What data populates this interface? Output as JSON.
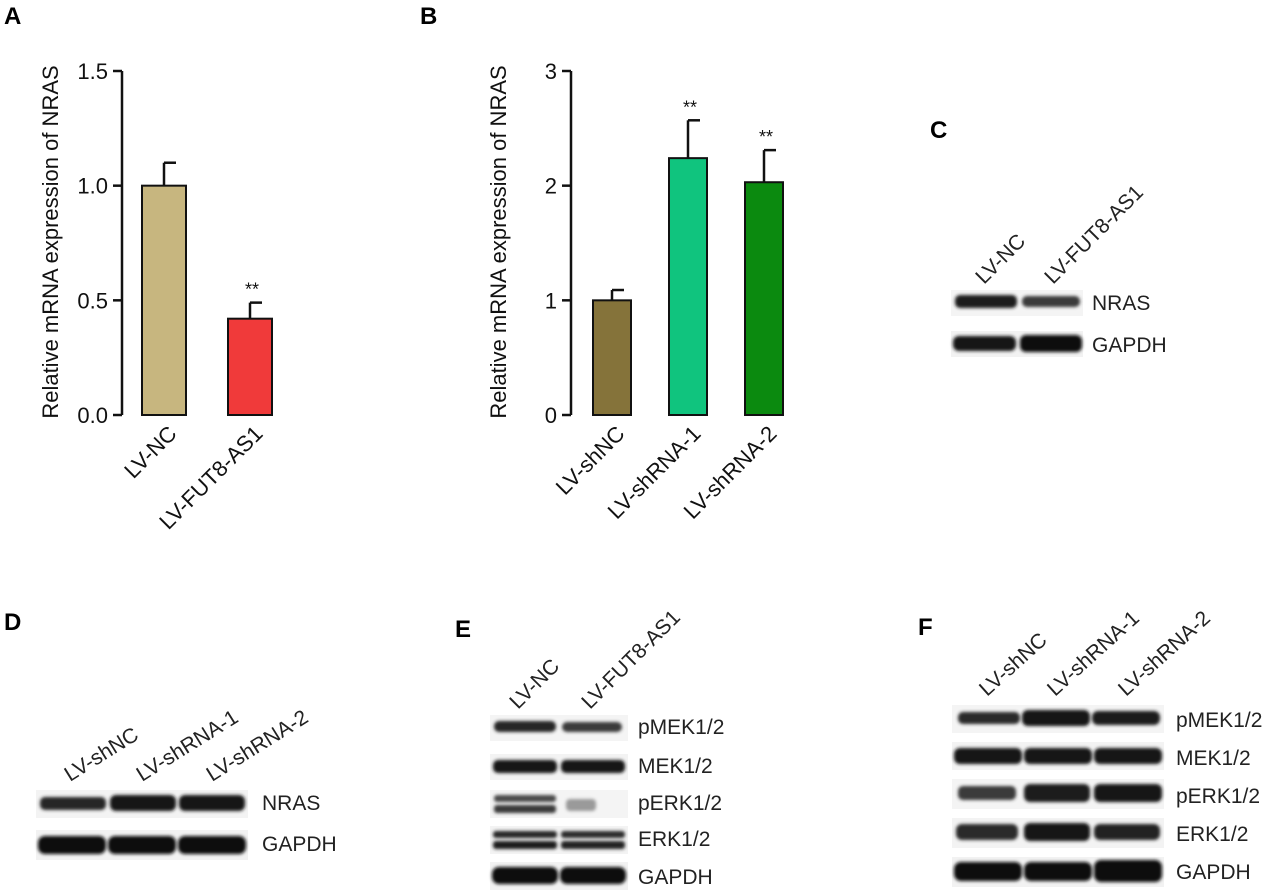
{
  "panels": {
    "A": "A",
    "B": "B",
    "C": "C",
    "D": "D",
    "E": "E",
    "F": "F"
  },
  "chart_data": [
    {
      "id": "A",
      "type": "bar",
      "ylabel": "Relative mRNA expression of NRAS",
      "ylim": [
        0,
        1.5
      ],
      "yticks": [
        "0.0",
        "0.5",
        "1.0",
        "1.5"
      ],
      "ytick_values": [
        0,
        0.5,
        1.0,
        1.5
      ],
      "categories": [
        "LV-NC",
        "LV-FUT8-AS1"
      ],
      "values": [
        1.0,
        0.42
      ],
      "errors": [
        0.1,
        0.07
      ],
      "colors": [
        "#c7b67f",
        "#f03a3a"
      ],
      "annotations": [
        "",
        "**"
      ]
    },
    {
      "id": "B",
      "type": "bar",
      "ylabel": "Relative mRNA expression of NRAS",
      "ylim": [
        0,
        3
      ],
      "yticks": [
        "0",
        "1",
        "2",
        "3"
      ],
      "ytick_values": [
        0,
        1,
        2,
        3
      ],
      "categories": [
        "LV-shNC",
        "LV-shRNA-1",
        "LV-shRNA-2"
      ],
      "values": [
        1.0,
        2.24,
        2.03
      ],
      "errors": [
        0.09,
        0.33,
        0.28
      ],
      "colors": [
        "#85733a",
        "#10c47e",
        "#0b8a0f"
      ],
      "annotations": [
        "",
        "**",
        "**"
      ]
    }
  ],
  "blots": {
    "C": {
      "lanes": [
        "LV-NC",
        "LV-FUT8-AS1"
      ],
      "proteins": [
        "NRAS",
        "GAPDH"
      ]
    },
    "D": {
      "lanes": [
        "LV-shNC",
        "LV-shRNA-1",
        "LV-shRNA-2"
      ],
      "proteins": [
        "NRAS",
        "GAPDH"
      ]
    },
    "E": {
      "lanes": [
        "LV-NC",
        "LV-FUT8-AS1"
      ],
      "proteins": [
        "pMEK1/2",
        "MEK1/2",
        "pERK1/2",
        "ERK1/2",
        "GAPDH"
      ]
    },
    "F": {
      "lanes": [
        "LV-shNC",
        "LV-shRNA-1",
        "LV-shRNA-2"
      ],
      "proteins": [
        "pMEK1/2",
        "MEK1/2",
        "pERK1/2",
        "ERK1/2",
        "GAPDH"
      ]
    }
  }
}
